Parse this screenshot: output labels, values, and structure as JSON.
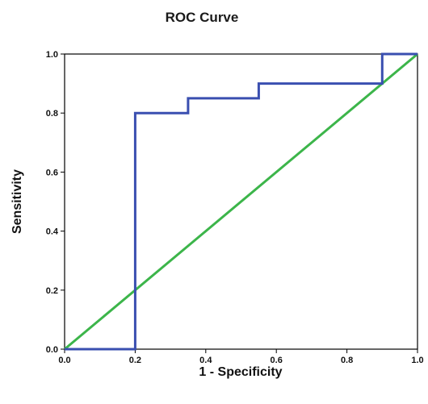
{
  "chart_data": {
    "type": "line",
    "title": "ROC Curve",
    "xlabel": "1 - Specificity",
    "ylabel": "Sensitivity",
    "xlim": [
      0.0,
      1.0
    ],
    "ylim": [
      0.0,
      1.0
    ],
    "x_ticks": [
      "0.0",
      "0.2",
      "0.4",
      "0.6",
      "0.8",
      "1.0"
    ],
    "y_ticks": [
      "0.0",
      "0.2",
      "0.4",
      "0.6",
      "0.8",
      "1.0"
    ],
    "grid": false,
    "series": [
      {
        "color": "#3a4fb0",
        "points": [
          [
            0.0,
            0.0
          ],
          [
            0.2,
            0.0
          ],
          [
            0.2,
            0.8
          ],
          [
            0.35,
            0.8
          ],
          [
            0.35,
            0.85
          ],
          [
            0.55,
            0.85
          ],
          [
            0.55,
            0.9
          ],
          [
            0.9,
            0.9
          ],
          [
            0.9,
            1.0
          ],
          [
            1.0,
            1.0
          ]
        ]
      },
      {
        "color": "#3cb54a",
        "points": [
          [
            0.0,
            0.0
          ],
          [
            1.0,
            1.0
          ]
        ]
      }
    ]
  }
}
